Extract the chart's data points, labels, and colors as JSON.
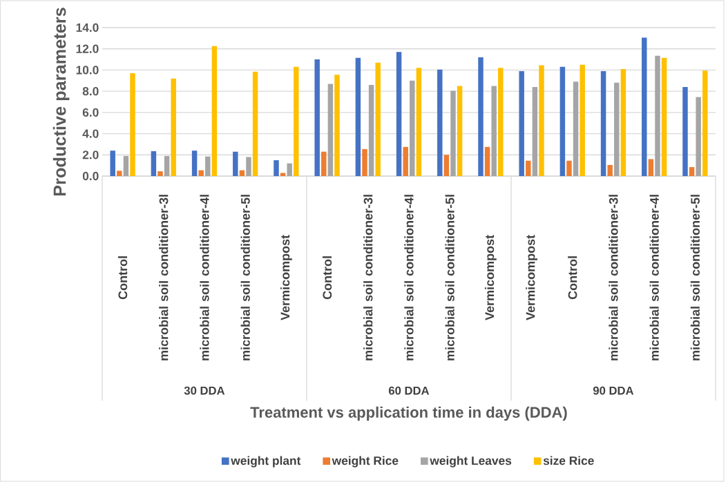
{
  "chart_data": {
    "type": "bar",
    "xlabel": "Treatment vs application time in days (DDA)",
    "ylabel": "Productive parameters",
    "categories": [
      "Control",
      "microbial soil conditioner-3l",
      "microbial soil conditioner-4l",
      "microbial soil conditioner-5l",
      "Vermicompost",
      "Control",
      "microbial soil conditioner-3l",
      "microbial soil conditioner-4l",
      "microbial soil conditioner-5l",
      "Vermicompost",
      "Vermicompost",
      "Control",
      "microbial soil conditioner-3l",
      "microbial soil conditioner-4l",
      "microbial soil conditioner-5l"
    ],
    "annotations": [
      "30 DDA",
      "60 DDA",
      "90 DDA"
    ],
    "series": [
      {
        "name": "weight plant",
        "color": "#4472c4",
        "values": [
          2.4,
          2.35,
          2.4,
          2.3,
          1.5,
          11.0,
          11.15,
          11.7,
          10.05,
          11.2,
          9.9,
          10.3,
          9.9,
          13.05,
          8.4
        ]
      },
      {
        "name": "weight Rice",
        "color": "#ed7d31",
        "values": [
          0.5,
          0.45,
          0.55,
          0.55,
          0.3,
          2.3,
          2.55,
          2.75,
          2.0,
          2.75,
          1.45,
          1.45,
          1.05,
          1.6,
          0.85
        ]
      },
      {
        "name": "weight Leaves",
        "color": "#a5a5a5",
        "values": [
          1.9,
          1.9,
          1.85,
          1.8,
          1.2,
          8.7,
          8.6,
          9.0,
          8.05,
          8.5,
          8.4,
          8.9,
          8.8,
          11.35,
          7.45
        ]
      },
      {
        "name": "size Rice",
        "color": "#ffc000",
        "values": [
          9.7,
          9.2,
          12.25,
          9.85,
          10.3,
          9.55,
          10.7,
          10.2,
          8.5,
          10.2,
          10.45,
          10.5,
          10.1,
          11.15,
          9.95
        ]
      }
    ],
    "ylim": [
      0,
      14
    ],
    "yticks": [
      {
        "value": 0,
        "label": "0.0"
      },
      {
        "value": 2,
        "label": "2.0"
      },
      {
        "value": 4,
        "label": "4.0"
      },
      {
        "value": 6,
        "label": "6.0"
      },
      {
        "value": 8,
        "label": "8.0"
      },
      {
        "value": 10,
        "label": "10.0"
      },
      {
        "value": 12,
        "label": "12.0"
      },
      {
        "value": 14,
        "label": "14.0"
      }
    ],
    "grid": "y",
    "legend": "bottom"
  }
}
